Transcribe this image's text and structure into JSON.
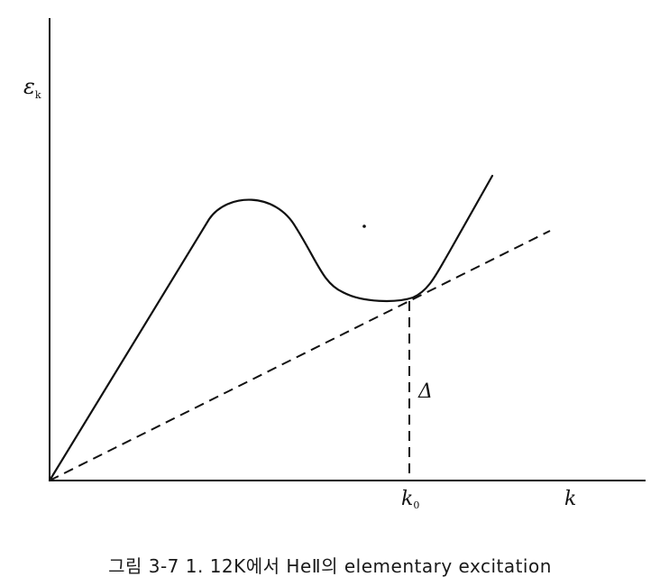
{
  "axes": {
    "y_label": "ε",
    "y_label_sub": "k",
    "x_label": "k",
    "x_tick_label": "k",
    "x_tick_sub": "0"
  },
  "annotations": {
    "gap_label": "Δ"
  },
  "caption": "그림 3-7  1. 12K에서 HeⅡ의 elementary excitation",
  "colors": {
    "ink": "#111111",
    "background": "#ffffff"
  }
}
